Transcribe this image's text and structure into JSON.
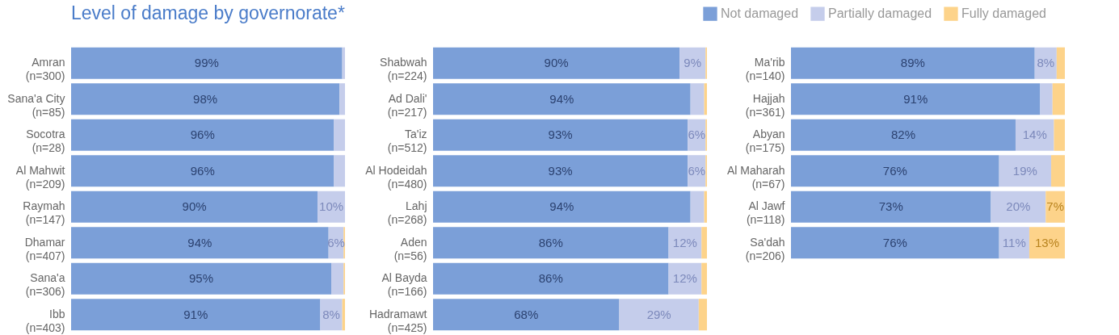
{
  "chart_data": [
    {
      "type": "bar",
      "title": "Level of damage by governorate*",
      "orientation": "horizontal",
      "stacked": true,
      "legend": "top right",
      "categories": [
        "Amran\n(n=300)",
        "Sana'a City\n(n=85)",
        "Socotra\n(n=28)",
        "Al Mahwit\n(n=209)",
        "Raymah\n(n=147)",
        "Dhamar\n(n=407)",
        "Sana'a\n(n=306)",
        "Ibb\n(n=403)"
      ],
      "series": [
        {
          "name": "Not damaged",
          "color": "#7b9fd8",
          "values": [
            99,
            98,
            96,
            96,
            90,
            94,
            95,
            91
          ],
          "value_labels": [
            "99%",
            "98%",
            "96%",
            "96%",
            "90%",
            "94%",
            "95%",
            "91%"
          ]
        },
        {
          "name": "Partially damaged",
          "color": "#c5cdeb",
          "values": [
            1,
            2,
            4,
            4,
            10,
            5.5,
            4.5,
            8
          ],
          "value_labels": [
            null,
            null,
            null,
            null,
            "10%",
            "6%",
            null,
            "8%"
          ]
        },
        {
          "name": "Fully damaged",
          "color": "#fdd38a",
          "values": [
            0,
            0,
            0,
            0,
            0,
            0.5,
            0.5,
            1
          ],
          "value_labels": [
            null,
            null,
            null,
            null,
            null,
            null,
            null,
            null
          ]
        }
      ]
    },
    {
      "type": "bar",
      "orientation": "horizontal",
      "stacked": true,
      "categories": [
        "Shabwah\n(n=224)",
        "Ad Dali'\n(n=217)",
        "Ta'iz\n(n=512)",
        "Al Hodeidah\n(n=480)",
        "Lahj\n(n=268)",
        "Aden\n(n=56)",
        "Al Bayda\n(n=166)",
        "Hadramawt\n(n=425)"
      ],
      "series": [
        {
          "name": "Not damaged",
          "color": "#7b9fd8",
          "values": [
            90,
            94,
            93,
            93,
            94,
            86,
            86,
            68
          ],
          "value_labels": [
            "90%",
            "94%",
            "93%",
            "93%",
            "94%",
            "86%",
            "86%",
            "68%"
          ]
        },
        {
          "name": "Partially damaged",
          "color": "#c5cdeb",
          "values": [
            9.5,
            5,
            6.5,
            6.5,
            5,
            12,
            12,
            29
          ],
          "value_labels": [
            "9%",
            null,
            "6%",
            "6%",
            null,
            "12%",
            "12%",
            "29%"
          ]
        },
        {
          "name": "Fully damaged",
          "color": "#fdd38a",
          "values": [
            0.5,
            1,
            0.5,
            0.5,
            1,
            2,
            2,
            3
          ],
          "value_labels": [
            null,
            null,
            null,
            null,
            null,
            null,
            null,
            null
          ]
        }
      ]
    },
    {
      "type": "bar",
      "orientation": "horizontal",
      "stacked": true,
      "categories": [
        "Ma'rib\n(n=140)",
        "Hajjah\n(n=361)",
        "Abyan\n(n=175)",
        "Al Maharah\n(n=67)",
        "Al Jawf\n(n=118)",
        "Sa'dah\n(n=206)"
      ],
      "series": [
        {
          "name": "Not damaged",
          "color": "#7b9fd8",
          "values": [
            89,
            91,
            82,
            76,
            73,
            76
          ],
          "value_labels": [
            "89%",
            "91%",
            "82%",
            "76%",
            "73%",
            "76%"
          ]
        },
        {
          "name": "Partially damaged",
          "color": "#c5cdeb",
          "values": [
            8,
            4.5,
            14,
            19,
            20,
            11
          ],
          "value_labels": [
            "8%",
            null,
            "14%",
            "19%",
            "20%",
            "11%"
          ]
        },
        {
          "name": "Fully damaged",
          "color": "#fdd38a",
          "values": [
            3,
            4.5,
            4,
            5,
            7,
            13
          ],
          "value_labels": [
            null,
            null,
            null,
            null,
            "7%",
            "13%"
          ]
        }
      ]
    }
  ]
}
